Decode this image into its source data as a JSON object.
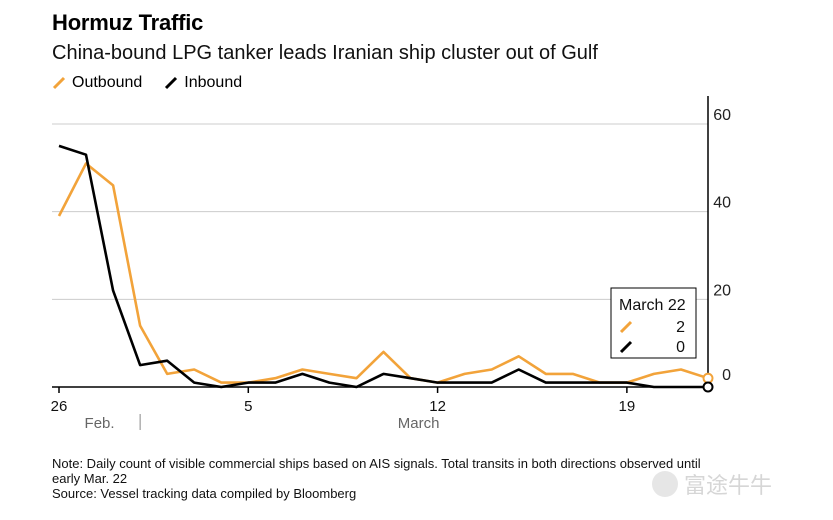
{
  "title": "Hormuz Traffic",
  "subtitle": "China-bound LPG tanker leads Iranian ship cluster out of Gulf",
  "colors": {
    "outbound": "#f2a33a",
    "inbound": "#000000",
    "grid": "#cccccc"
  },
  "footer": {
    "note": "Note: Daily count of visible commercial ships based on AIS signals. Total transits in both directions observed until early Mar. 22",
    "source": "Source: Vessel tracking data compiled by Bloomberg"
  },
  "watermark": "富途牛牛",
  "chart_data": {
    "type": "line",
    "x": [
      "2026-02-26",
      "2026-02-27",
      "2026-02-28",
      "2026-03-01",
      "2026-03-02",
      "2026-03-03",
      "2026-03-04",
      "2026-03-05",
      "2026-03-06",
      "2026-03-07",
      "2026-03-08",
      "2026-03-09",
      "2026-03-10",
      "2026-03-11",
      "2026-03-12",
      "2026-03-13",
      "2026-03-14",
      "2026-03-15",
      "2026-03-16",
      "2026-03-17",
      "2026-03-18",
      "2026-03-19",
      "2026-03-20",
      "2026-03-21",
      "2026-03-22"
    ],
    "series": [
      {
        "name": "Outbound",
        "color": "#f2a33a",
        "values": [
          39,
          51,
          46,
          14,
          3,
          4,
          1,
          1,
          2,
          4,
          3,
          2,
          8,
          2,
          1,
          3,
          4,
          7,
          3,
          3,
          1,
          1,
          3,
          4,
          2
        ]
      },
      {
        "name": "Inbound",
        "color": "#000000",
        "values": [
          55,
          53,
          22,
          5,
          6,
          1,
          0,
          1,
          1,
          3,
          1,
          0,
          3,
          2,
          1,
          1,
          1,
          4,
          1,
          1,
          1,
          1,
          0,
          0,
          0
        ]
      }
    ],
    "ylim": [
      0,
      60
    ],
    "yticks": [
      "0",
      "20",
      "40",
      "60"
    ],
    "xtick_labels": [
      "26",
      "5",
      "12",
      "19"
    ],
    "month_labels": [
      "Feb.",
      "March"
    ],
    "tooltip": {
      "title": "March 22",
      "outbound": "2",
      "inbound": "0"
    },
    "grid": true,
    "legend_position": "top-left",
    "y_axis_side": "right"
  }
}
